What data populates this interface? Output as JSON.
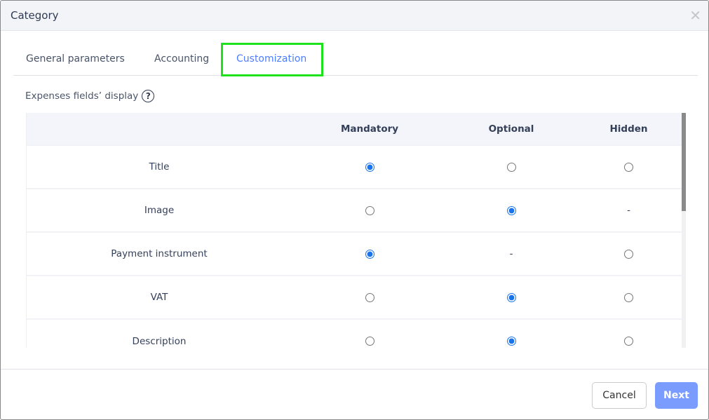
{
  "dialog": {
    "title": "Category",
    "close_icon": "close-icon"
  },
  "tabs": [
    {
      "label": "General parameters",
      "active": false
    },
    {
      "label": "Accounting",
      "active": false
    },
    {
      "label": "Customization",
      "active": true
    }
  ],
  "section": {
    "label": "Expenses fields’ display",
    "help_icon": "?"
  },
  "table": {
    "columns": [
      "",
      "Mandatory",
      "Optional",
      "Hidden"
    ],
    "rows": [
      {
        "field": "Title",
        "values": [
          "selected",
          "unselected",
          "unselected"
        ]
      },
      {
        "field": "Image",
        "values": [
          "unselected",
          "selected",
          "-"
        ]
      },
      {
        "field": "Payment instrument",
        "values": [
          "selected",
          "-",
          "unselected"
        ]
      },
      {
        "field": "VAT",
        "values": [
          "unselected",
          "selected",
          "unselected"
        ]
      },
      {
        "field": "Description",
        "values": [
          "unselected",
          "selected",
          "unselected"
        ]
      }
    ]
  },
  "footer": {
    "cancel": "Cancel",
    "next": "Next"
  },
  "colors": {
    "accent": "#4d7dff",
    "radio": "#1a73e8",
    "next_button": "#7b9cff",
    "highlight": "#1fe21f"
  }
}
